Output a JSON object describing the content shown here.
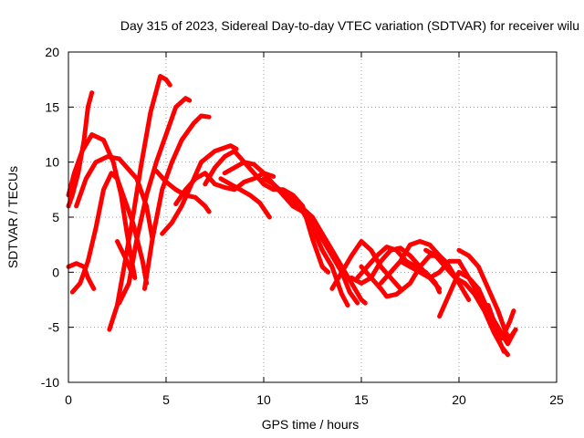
{
  "chart_data": {
    "type": "line",
    "title": "Day 315 of 2023, Sidereal Day-to-day VTEC variation (SDTVAR) for receiver wilu",
    "xlabel": "GPS time / hours",
    "ylabel": "SDTVAR / TECUs",
    "xlim": [
      0,
      25
    ],
    "ylim": [
      -10,
      20
    ],
    "xticks": [
      "0",
      "5",
      "10",
      "15",
      "20",
      "25"
    ],
    "yticks": [
      "-10",
      "-5",
      "0",
      "5",
      "10",
      "15",
      "20"
    ],
    "grid": true,
    "series_color": "#ff0000",
    "series": [
      {
        "name": "arc-1",
        "points": [
          [
            0.0,
            6.0
          ],
          [
            0.2,
            7.0
          ],
          [
            0.5,
            9.0
          ],
          [
            0.8,
            12.0
          ],
          [
            1.0,
            15.0
          ],
          [
            1.2,
            16.3
          ]
        ]
      },
      {
        "name": "arc-2",
        "points": [
          [
            0.0,
            7.0
          ],
          [
            0.3,
            9.0
          ],
          [
            0.7,
            11.0
          ],
          [
            1.2,
            12.5
          ],
          [
            1.8,
            12.0
          ],
          [
            2.3,
            10.0
          ],
          [
            2.7,
            7.0
          ],
          [
            3.0,
            3.5
          ],
          [
            3.3,
            0.5
          ],
          [
            3.4,
            -0.5
          ]
        ]
      },
      {
        "name": "arc-3",
        "points": [
          [
            0.0,
            0.5
          ],
          [
            0.4,
            0.8
          ],
          [
            0.8,
            0.5
          ],
          [
            1.0,
            -0.5
          ],
          [
            1.3,
            -1.5
          ]
        ]
      },
      {
        "name": "arc-4",
        "points": [
          [
            0.2,
            -1.8
          ],
          [
            0.6,
            -1.0
          ],
          [
            1.0,
            1.0
          ],
          [
            1.4,
            4.0
          ],
          [
            1.8,
            7.5
          ],
          [
            2.2,
            9.0
          ],
          [
            2.5,
            8.5
          ],
          [
            2.8,
            7.0
          ],
          [
            3.3,
            4.5
          ],
          [
            3.8,
            1.0
          ],
          [
            4.0,
            -1.0
          ]
        ]
      },
      {
        "name": "arc-5",
        "points": [
          [
            0.4,
            6.0
          ],
          [
            0.9,
            8.5
          ],
          [
            1.4,
            10.0
          ],
          [
            2.0,
            10.5
          ],
          [
            2.6,
            10.3
          ],
          [
            3.0,
            9.5
          ],
          [
            3.5,
            8.5
          ],
          [
            4.0,
            6.0
          ],
          [
            4.3,
            3.0
          ]
        ]
      },
      {
        "name": "arc-6",
        "points": [
          [
            2.1,
            -5.2
          ],
          [
            2.5,
            -3.0
          ],
          [
            2.9,
            1.0
          ],
          [
            3.3,
            5.0
          ],
          [
            3.7,
            9.5
          ],
          [
            4.2,
            14.5
          ],
          [
            4.7,
            17.8
          ],
          [
            5.0,
            17.5
          ],
          [
            5.2,
            17.0
          ]
        ]
      },
      {
        "name": "arc-7",
        "points": [
          [
            2.5,
            2.8
          ],
          [
            3.0,
            1.0
          ],
          [
            3.3,
            -0.3
          ]
        ]
      },
      {
        "name": "arc-8",
        "points": [
          [
            2.6,
            -2.8
          ],
          [
            3.1,
            -1.0
          ],
          [
            3.5,
            3.0
          ],
          [
            4.0,
            7.0
          ],
          [
            4.5,
            10.0
          ],
          [
            5.0,
            12.5
          ],
          [
            5.5,
            15.0
          ],
          [
            6.0,
            15.8
          ],
          [
            6.2,
            15.6
          ]
        ]
      },
      {
        "name": "arc-9",
        "points": [
          [
            3.9,
            -1.5
          ],
          [
            4.3,
            3.0
          ],
          [
            4.8,
            7.5
          ],
          [
            5.3,
            10.0
          ],
          [
            5.8,
            12.0
          ],
          [
            6.4,
            13.5
          ],
          [
            6.8,
            14.2
          ],
          [
            7.2,
            14.1
          ]
        ]
      },
      {
        "name": "arc-10",
        "points": [
          [
            4.5,
            9.2
          ],
          [
            5.0,
            8.2
          ],
          [
            5.5,
            7.5
          ],
          [
            6.0,
            7.0
          ],
          [
            6.5,
            6.8
          ],
          [
            7.0,
            6.0
          ],
          [
            7.2,
            5.5
          ]
        ]
      },
      {
        "name": "arc-11",
        "points": [
          [
            4.8,
            3.5
          ],
          [
            5.3,
            4.5
          ],
          [
            5.8,
            6.0
          ],
          [
            6.3,
            8.0
          ],
          [
            6.8,
            10.0
          ],
          [
            7.5,
            11.0
          ],
          [
            8.3,
            11.5
          ],
          [
            8.6,
            11.2
          ]
        ]
      },
      {
        "name": "arc-12",
        "points": [
          [
            5.5,
            6.2
          ],
          [
            6.0,
            7.5
          ],
          [
            6.5,
            8.5
          ],
          [
            7.0,
            9.0
          ],
          [
            7.5,
            8.0
          ],
          [
            8.0,
            7.7
          ],
          [
            8.5,
            7.5
          ],
          [
            9.0,
            8.2
          ],
          [
            9.5,
            8.5
          ],
          [
            10.0,
            9.0
          ],
          [
            10.5,
            8.7
          ]
        ]
      },
      {
        "name": "arc-13",
        "points": [
          [
            7.0,
            8.0
          ],
          [
            7.5,
            9.5
          ],
          [
            8.0,
            10.5
          ],
          [
            8.5,
            11.0
          ],
          [
            9.0,
            10.0
          ],
          [
            9.5,
            9.8
          ],
          [
            10.0,
            9.0
          ],
          [
            10.5,
            8.0
          ],
          [
            11.0,
            7.2
          ],
          [
            11.5,
            6.5
          ],
          [
            12.0,
            5.5
          ],
          [
            12.5,
            4.0
          ],
          [
            13.0,
            2.0
          ],
          [
            13.5,
            0.5
          ],
          [
            14.0,
            -2.0
          ],
          [
            14.3,
            -3.0
          ]
        ]
      },
      {
        "name": "arc-14",
        "points": [
          [
            7.8,
            8.5
          ],
          [
            8.3,
            8.0
          ],
          [
            8.8,
            7.5
          ],
          [
            9.3,
            7.0
          ],
          [
            9.8,
            6.3
          ],
          [
            10.3,
            5.0
          ]
        ]
      },
      {
        "name": "arc-15",
        "points": [
          [
            8.0,
            9.0
          ],
          [
            8.5,
            9.5
          ],
          [
            9.0,
            10.0
          ],
          [
            9.5,
            9.0
          ],
          [
            10.0,
            8.0
          ],
          [
            10.5,
            7.5
          ],
          [
            11.0,
            7.5
          ],
          [
            11.5,
            7.0
          ],
          [
            12.0,
            6.0
          ],
          [
            12.5,
            3.0
          ],
          [
            13.0,
            0.5
          ],
          [
            13.3,
            0.0
          ]
        ]
      },
      {
        "name": "arc-16",
        "points": [
          [
            10.0,
            8.5
          ],
          [
            10.5,
            8.0
          ],
          [
            11.0,
            7.0
          ],
          [
            11.5,
            6.0
          ],
          [
            12.0,
            5.5
          ],
          [
            12.5,
            4.5
          ],
          [
            13.0,
            3.0
          ],
          [
            13.5,
            1.5
          ],
          [
            14.0,
            0.0
          ],
          [
            14.4,
            -1.8
          ],
          [
            14.8,
            -2.8
          ]
        ]
      },
      {
        "name": "arc-17",
        "points": [
          [
            11.0,
            7.0
          ],
          [
            11.5,
            6.5
          ],
          [
            12.0,
            5.8
          ],
          [
            12.5,
            5.0
          ],
          [
            13.0,
            3.5
          ],
          [
            13.5,
            2.0
          ],
          [
            14.0,
            0.5
          ],
          [
            14.5,
            -1.0
          ],
          [
            15.0,
            -2.5
          ],
          [
            15.2,
            -2.8
          ]
        ]
      },
      {
        "name": "arc-18",
        "points": [
          [
            13.5,
            -1.5
          ],
          [
            14.0,
            0.0
          ],
          [
            14.5,
            1.5
          ],
          [
            15.0,
            2.8
          ],
          [
            15.5,
            2.0
          ],
          [
            16.0,
            0.5
          ],
          [
            16.5,
            -0.5
          ],
          [
            17.0,
            -1.5
          ]
        ]
      },
      {
        "name": "arc-19",
        "points": [
          [
            14.5,
            -0.5
          ],
          [
            15.0,
            -1.0
          ],
          [
            15.5,
            -0.5
          ],
          [
            16.0,
            1.0
          ],
          [
            16.5,
            2.0
          ],
          [
            17.0,
            2.2
          ],
          [
            17.5,
            1.5
          ],
          [
            18.0,
            0.5
          ],
          [
            18.5,
            -0.5
          ],
          [
            19.0,
            -1.5
          ]
        ]
      },
      {
        "name": "arc-20",
        "points": [
          [
            14.8,
            -0.5
          ],
          [
            15.3,
            0.5
          ],
          [
            15.8,
            1.5
          ],
          [
            16.3,
            2.3
          ],
          [
            16.8,
            2.0
          ],
          [
            17.3,
            1.0
          ],
          [
            17.8,
            0.5
          ],
          [
            18.3,
            0.0
          ],
          [
            18.8,
            -1.0
          ],
          [
            19.0,
            -1.8
          ]
        ]
      },
      {
        "name": "arc-21",
        "points": [
          [
            15.0,
            0.5
          ],
          [
            15.5,
            -0.5
          ],
          [
            16.0,
            -1.5
          ],
          [
            16.3,
            -2.2
          ],
          [
            16.8,
            -2.0
          ],
          [
            17.5,
            -1.0
          ],
          [
            18.0,
            0.5
          ],
          [
            18.5,
            1.5
          ],
          [
            19.0,
            1.5
          ],
          [
            19.3,
            1.0
          ]
        ]
      },
      {
        "name": "arc-22",
        "points": [
          [
            16.0,
            -1.0
          ],
          [
            16.5,
            0.0
          ],
          [
            17.0,
            1.0
          ],
          [
            17.5,
            2.5
          ],
          [
            18.0,
            2.8
          ],
          [
            18.5,
            2.5
          ],
          [
            19.0,
            1.5
          ],
          [
            19.5,
            0.5
          ],
          [
            20.0,
            -1.0
          ],
          [
            20.5,
            -2.5
          ]
        ]
      },
      {
        "name": "arc-23",
        "points": [
          [
            17.0,
            1.0
          ],
          [
            17.5,
            0.5
          ],
          [
            18.0,
            0.0
          ],
          [
            18.5,
            -0.5
          ],
          [
            19.0,
            0.0
          ],
          [
            19.5,
            1.0
          ],
          [
            20.0,
            1.0
          ],
          [
            20.5,
            -0.5
          ],
          [
            21.0,
            -2.0
          ],
          [
            21.5,
            -4.0
          ],
          [
            22.0,
            -6.0
          ],
          [
            22.3,
            -7.2
          ]
        ]
      },
      {
        "name": "arc-24",
        "points": [
          [
            18.3,
            2.0
          ],
          [
            18.8,
            1.5
          ],
          [
            19.3,
            0.5
          ],
          [
            19.8,
            -0.5
          ],
          [
            20.3,
            -1.0
          ],
          [
            20.8,
            -2.0
          ],
          [
            21.3,
            -3.5
          ],
          [
            21.8,
            -5.5
          ],
          [
            22.2,
            -6.8
          ],
          [
            22.5,
            -7.5
          ]
        ]
      },
      {
        "name": "arc-25",
        "points": [
          [
            19.0,
            -4.0
          ],
          [
            19.5,
            -2.0
          ],
          [
            20.0,
            0.0
          ],
          [
            20.5,
            -0.5
          ],
          [
            21.0,
            -1.5
          ],
          [
            21.5,
            -3.5
          ],
          [
            22.0,
            -5.0
          ],
          [
            22.5,
            -6.5
          ],
          [
            22.8,
            -5.5
          ]
        ]
      },
      {
        "name": "arc-26",
        "points": [
          [
            20.0,
            2.0
          ],
          [
            20.5,
            1.5
          ],
          [
            21.0,
            0.5
          ],
          [
            21.5,
            -1.5
          ],
          [
            22.0,
            -3.5
          ],
          [
            22.4,
            -5.5
          ],
          [
            22.6,
            -6.0
          ]
        ]
      },
      {
        "name": "arc-27",
        "points": [
          [
            21.5,
            -3.0
          ],
          [
            21.9,
            -5.0
          ],
          [
            22.2,
            -6.0
          ],
          [
            22.6,
            -4.5
          ],
          [
            22.8,
            -3.5
          ]
        ]
      },
      {
        "name": "arc-28",
        "points": [
          [
            22.0,
            -5.5
          ],
          [
            22.3,
            -6.0
          ],
          [
            22.6,
            -6.0
          ],
          [
            22.9,
            -5.2
          ]
        ]
      }
    ]
  }
}
